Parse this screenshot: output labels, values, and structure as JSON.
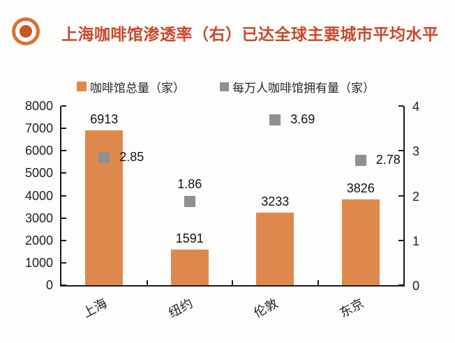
{
  "header": {
    "title": "上海咖啡馆渗透率（右）已达全球主要城市平均水平"
  },
  "colors": {
    "title_text": "#C8492B",
    "icon_ring": "#DB7038",
    "icon_dot": "#C85623",
    "bar_orange": "#DF884E",
    "marker_gray": "#8E9191",
    "axis_black": "#1A1A1A",
    "background": "#FDFDFC"
  },
  "chart_data": {
    "type": "bar",
    "title": "上海咖啡馆渗透率（右）已达全球主要城市平均水平",
    "categories": [
      "上海",
      "纽约",
      "伦敦",
      "东京"
    ],
    "series": [
      {
        "name": "咖啡馆总量（家）",
        "type": "bar",
        "axis": "left",
        "color": "#DF884E",
        "values": [
          6913,
          1591,
          3233,
          3826
        ]
      },
      {
        "name": "每万人咖啡馆拥有量（家）",
        "type": "scatter",
        "marker": "square",
        "axis": "right",
        "color": "#8E9191",
        "values": [
          2.85,
          1.86,
          3.69,
          2.78
        ],
        "value_label_decimals": 2,
        "label_positions": [
          "right",
          "above",
          "right",
          "right"
        ]
      }
    ],
    "left_axis": {
      "min": 0,
      "max": 8000,
      "step": 1000
    },
    "right_axis": {
      "min": 0,
      "max": 4,
      "step": 1
    },
    "grid": false,
    "legend_position": "top"
  }
}
